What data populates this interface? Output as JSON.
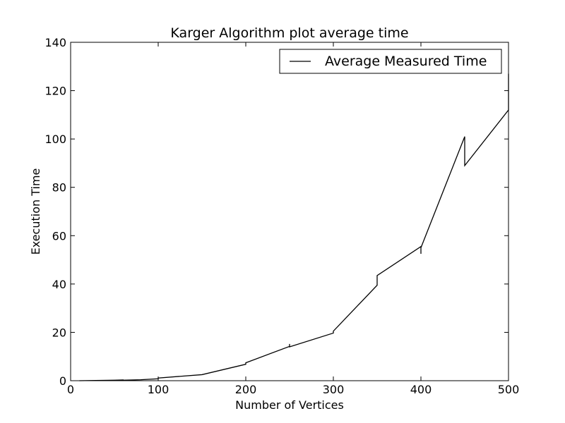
{
  "chart_data": {
    "type": "line",
    "title": "Karger Algorithm plot average time",
    "xlabel": "Number of Vertices",
    "ylabel": "Execution Time",
    "xlim": [
      0,
      500
    ],
    "ylim": [
      0,
      140
    ],
    "xticks": [
      0,
      100,
      200,
      300,
      400,
      500
    ],
    "yticks": [
      0,
      20,
      40,
      60,
      80,
      100,
      120,
      140
    ],
    "grid": false,
    "legend": "top-right",
    "line_color": "#000000",
    "series": [
      {
        "name": "Average Measured Time",
        "x": [
          10,
          50,
          60,
          60,
          80,
          100,
          100,
          150,
          200,
          200,
          250,
          250,
          250,
          300,
          300,
          350,
          350,
          400,
          400,
          400,
          450,
          450,
          500,
          500
        ],
        "y": [
          0,
          0.2,
          0.3,
          0.2,
          0.4,
          0.8,
          1.1,
          2.5,
          6.8,
          7.4,
          14.2,
          15.2,
          14.0,
          19.7,
          20.5,
          39.5,
          43.5,
          55.5,
          52.5,
          55.0,
          101.0,
          89.0,
          112.0,
          127.0
        ]
      }
    ]
  }
}
